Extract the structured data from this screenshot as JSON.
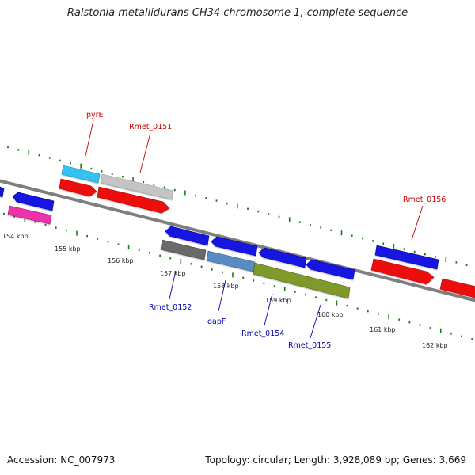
{
  "title": "Ralstonia metallidurans CH34 chromosome 1, complete sequence",
  "footer": {
    "accession": "Accession: NC_007973",
    "topology": "Topology: circular; Length: 3,928,089 bp; Genes: 3,669"
  },
  "colors": {
    "backbone": "#7f7f7f",
    "tick": "#1a7a1a",
    "label_forward": "#cc0000",
    "label_reverse": "#0000aa",
    "gene_blue": "#1515e0",
    "gene_red": "#ee1111",
    "gene_cyan": "#33c3ee",
    "gene_gray": "#c4c4c4",
    "gene_pink": "#ee33aa",
    "gene_darkgray": "#6a6a6a",
    "gene_steel": "#5a8cc4",
    "gene_olive": "#7f9a2a"
  },
  "kbp_labels": [
    "154 kbp",
    "155 kbp",
    "156 kbp",
    "157 kbp",
    "158 kbp",
    "159 kbp",
    "160 kbp",
    "161 kbp",
    "162 kbp"
  ],
  "gene_labels": {
    "pyrE": "pyrE",
    "rmet_0151": "Rmet_0151",
    "rmet_0156": "Rmet_0156",
    "rmet_0152": "Rmet_0152",
    "dapF": "dapF",
    "rmet_0154": "Rmet_0154",
    "rmet_0155": "Rmet_0155"
  }
}
